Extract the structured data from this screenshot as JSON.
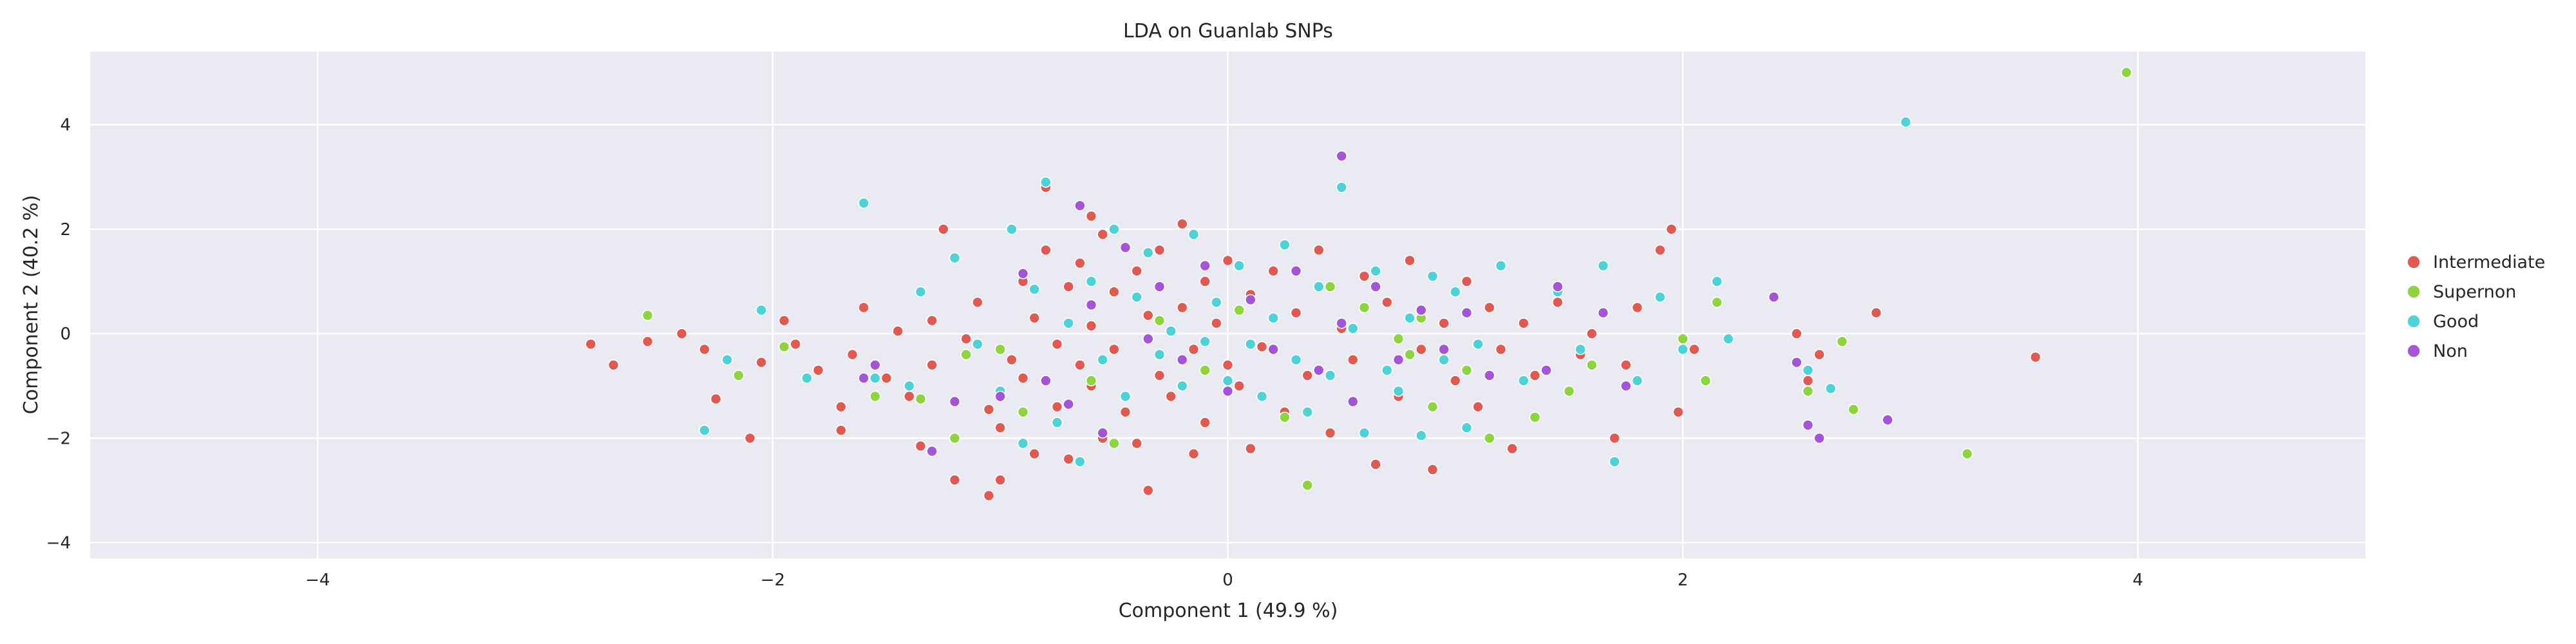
{
  "chart_data": {
    "type": "scatter",
    "title": "LDA on Guanlab SNPs",
    "xlabel": "Component 1 (49.9 %)",
    "ylabel": "Component 2 (40.2 %)",
    "xlim": [
      -5,
      5
    ],
    "ylim": [
      -4.3,
      5.4
    ],
    "xticks": [
      -4,
      -2,
      0,
      2,
      4
    ],
    "xtick_labels": [
      "−4",
      "−2",
      "0",
      "2",
      "4"
    ],
    "yticks": [
      -4,
      -2,
      0,
      2,
      4
    ],
    "ytick_labels": [
      "−4",
      "−2",
      "0",
      "2",
      "4"
    ],
    "grid": true,
    "legend_position": "right",
    "background_color": "#eaeaf2",
    "grid_color": "#ffffff",
    "series": [
      {
        "name": "Intermediate",
        "color": "#e05a51",
        "points": [
          [
            -2.8,
            -0.2
          ],
          [
            -2.7,
            -0.6
          ],
          [
            -2.55,
            -0.15
          ],
          [
            -2.4,
            0.0
          ],
          [
            -2.3,
            -0.3
          ],
          [
            -2.25,
            -1.25
          ],
          [
            -2.1,
            -2.0
          ],
          [
            -2.05,
            -0.55
          ],
          [
            -1.95,
            0.25
          ],
          [
            -1.9,
            -0.2
          ],
          [
            -1.8,
            -0.7
          ],
          [
            -1.7,
            -1.4
          ],
          [
            -1.7,
            -1.85
          ],
          [
            -1.65,
            -0.4
          ],
          [
            -1.6,
            0.5
          ],
          [
            -1.5,
            -0.85
          ],
          [
            -1.45,
            0.05
          ],
          [
            -1.4,
            -1.2
          ],
          [
            -1.35,
            -2.15
          ],
          [
            -1.3,
            0.25
          ],
          [
            -1.3,
            -0.6
          ],
          [
            -1.25,
            2.0
          ],
          [
            -1.2,
            -2.8
          ],
          [
            -1.15,
            -0.1
          ],
          [
            -1.1,
            0.6
          ],
          [
            -1.05,
            -1.45
          ],
          [
            -1.05,
            -3.1
          ],
          [
            -1.0,
            -2.8
          ],
          [
            -1.0,
            -1.8
          ],
          [
            -0.95,
            -0.5
          ],
          [
            -0.9,
            1.0
          ],
          [
            -0.9,
            -0.85
          ],
          [
            -0.85,
            0.3
          ],
          [
            -0.85,
            -2.3
          ],
          [
            -0.8,
            2.8
          ],
          [
            -0.8,
            1.6
          ],
          [
            -0.75,
            -0.2
          ],
          [
            -0.75,
            -1.4
          ],
          [
            -0.7,
            0.9
          ],
          [
            -0.7,
            -2.4
          ],
          [
            -0.65,
            -0.6
          ],
          [
            -0.65,
            1.35
          ],
          [
            -0.6,
            2.25
          ],
          [
            -0.6,
            0.15
          ],
          [
            -0.6,
            -1.0
          ],
          [
            -0.55,
            -2.0
          ],
          [
            -0.55,
            1.9
          ],
          [
            -0.5,
            -0.3
          ],
          [
            -0.5,
            0.8
          ],
          [
            -0.45,
            -1.5
          ],
          [
            -0.4,
            1.2
          ],
          [
            -0.4,
            -2.1
          ],
          [
            -0.35,
            -3.0
          ],
          [
            -0.35,
            0.35
          ],
          [
            -0.3,
            -0.8
          ],
          [
            -0.3,
            1.6
          ],
          [
            -0.25,
            -1.2
          ],
          [
            -0.2,
            2.1
          ],
          [
            -0.2,
            0.5
          ],
          [
            -0.15,
            -2.3
          ],
          [
            -0.15,
            -0.3
          ],
          [
            -0.1,
            1.0
          ],
          [
            -0.1,
            -1.7
          ],
          [
            -0.05,
            0.2
          ],
          [
            0.0,
            -0.6
          ],
          [
            0.0,
            1.4
          ],
          [
            0.05,
            -1.0
          ],
          [
            0.1,
            -2.2
          ],
          [
            0.1,
            0.75
          ],
          [
            0.15,
            -0.25
          ],
          [
            0.2,
            1.2
          ],
          [
            0.25,
            -1.5
          ],
          [
            0.3,
            0.4
          ],
          [
            0.35,
            -0.8
          ],
          [
            0.4,
            1.6
          ],
          [
            0.45,
            -1.9
          ],
          [
            0.5,
            0.1
          ],
          [
            0.55,
            -0.5
          ],
          [
            0.6,
            1.1
          ],
          [
            0.65,
            -2.5
          ],
          [
            0.7,
            0.6
          ],
          [
            0.75,
            -1.2
          ],
          [
            0.8,
            1.4
          ],
          [
            0.85,
            -0.3
          ],
          [
            0.9,
            -2.6
          ],
          [
            0.95,
            0.2
          ],
          [
            1.0,
            -0.9
          ],
          [
            1.05,
            1.0
          ],
          [
            1.1,
            -1.4
          ],
          [
            1.15,
            0.5
          ],
          [
            1.2,
            -0.3
          ],
          [
            1.25,
            -2.2
          ],
          [
            1.3,
            0.2
          ],
          [
            1.35,
            -0.8
          ],
          [
            1.45,
            0.6
          ],
          [
            1.55,
            -0.4
          ],
          [
            1.6,
            0.0
          ],
          [
            1.7,
            -2.0
          ],
          [
            1.75,
            -0.6
          ],
          [
            1.8,
            0.5
          ],
          [
            1.9,
            1.6
          ],
          [
            1.95,
            2.0
          ],
          [
            1.98,
            -1.5
          ],
          [
            2.05,
            -0.3
          ],
          [
            2.5,
            0.0
          ],
          [
            2.55,
            -0.9
          ],
          [
            2.6,
            -0.4
          ],
          [
            2.85,
            0.4
          ],
          [
            3.55,
            -0.45
          ]
        ]
      },
      {
        "name": "Supernon",
        "color": "#8dd43f",
        "points": [
          [
            -2.55,
            0.35
          ],
          [
            -2.15,
            -0.8
          ],
          [
            -1.95,
            -0.25
          ],
          [
            -1.55,
            -1.2
          ],
          [
            -1.35,
            -1.25
          ],
          [
            -1.2,
            -2.0
          ],
          [
            -1.15,
            -0.4
          ],
          [
            -1.0,
            -0.3
          ],
          [
            -0.9,
            -1.5
          ],
          [
            -0.6,
            -0.9
          ],
          [
            -0.5,
            -2.1
          ],
          [
            -0.3,
            0.25
          ],
          [
            -0.1,
            -0.7
          ],
          [
            0.05,
            0.45
          ],
          [
            0.25,
            -1.6
          ],
          [
            0.35,
            -2.9
          ],
          [
            0.45,
            0.9
          ],
          [
            0.6,
            0.5
          ],
          [
            0.75,
            -0.1
          ],
          [
            0.8,
            -0.4
          ],
          [
            0.85,
            0.3
          ],
          [
            0.9,
            -1.4
          ],
          [
            1.05,
            -0.7
          ],
          [
            1.15,
            -2.0
          ],
          [
            1.35,
            -1.6
          ],
          [
            1.5,
            -1.1
          ],
          [
            1.6,
            -0.6
          ],
          [
            2.0,
            -0.1
          ],
          [
            2.1,
            -0.9
          ],
          [
            2.15,
            0.6
          ],
          [
            2.55,
            -1.1
          ],
          [
            2.7,
            -0.15
          ],
          [
            2.75,
            -1.45
          ],
          [
            3.25,
            -2.3
          ],
          [
            3.95,
            5.0
          ]
        ]
      },
      {
        "name": "Good",
        "color": "#4dd2d8",
        "points": [
          [
            -2.3,
            -1.85
          ],
          [
            -2.2,
            -0.5
          ],
          [
            -2.05,
            0.45
          ],
          [
            -1.85,
            -0.85
          ],
          [
            -1.6,
            2.5
          ],
          [
            -1.55,
            -0.85
          ],
          [
            -1.4,
            -1.0
          ],
          [
            -1.35,
            0.8
          ],
          [
            -1.2,
            1.45
          ],
          [
            -1.1,
            -0.2
          ],
          [
            -1.0,
            -1.1
          ],
          [
            -0.95,
            2.0
          ],
          [
            -0.9,
            -2.1
          ],
          [
            -0.85,
            0.85
          ],
          [
            -0.8,
            2.9
          ],
          [
            -0.75,
            -1.7
          ],
          [
            -0.7,
            0.2
          ],
          [
            -0.65,
            -2.45
          ],
          [
            -0.6,
            1.0
          ],
          [
            -0.55,
            -0.5
          ],
          [
            -0.5,
            2.0
          ],
          [
            -0.45,
            -1.2
          ],
          [
            -0.4,
            0.7
          ],
          [
            -0.35,
            1.55
          ],
          [
            -0.3,
            -0.4
          ],
          [
            -0.25,
            0.05
          ],
          [
            -0.2,
            -1.0
          ],
          [
            -0.15,
            1.9
          ],
          [
            -0.1,
            -0.15
          ],
          [
            -0.05,
            0.6
          ],
          [
            0.0,
            -0.9
          ],
          [
            0.05,
            1.3
          ],
          [
            0.1,
            -0.2
          ],
          [
            0.15,
            -1.2
          ],
          [
            0.2,
            0.3
          ],
          [
            0.25,
            1.7
          ],
          [
            0.3,
            -0.5
          ],
          [
            0.35,
            -1.5
          ],
          [
            0.4,
            0.9
          ],
          [
            0.45,
            -0.8
          ],
          [
            0.5,
            2.8
          ],
          [
            0.55,
            0.1
          ],
          [
            0.6,
            -1.9
          ],
          [
            0.65,
            1.2
          ],
          [
            0.7,
            -0.7
          ],
          [
            0.75,
            -1.1
          ],
          [
            0.8,
            0.3
          ],
          [
            0.85,
            -1.95
          ],
          [
            0.9,
            1.1
          ],
          [
            0.95,
            -0.5
          ],
          [
            1.0,
            0.8
          ],
          [
            1.05,
            -1.8
          ],
          [
            1.1,
            -0.2
          ],
          [
            1.2,
            1.3
          ],
          [
            1.3,
            -0.9
          ],
          [
            1.45,
            0.8
          ],
          [
            1.55,
            -0.3
          ],
          [
            1.65,
            1.3
          ],
          [
            1.7,
            -2.45
          ],
          [
            1.8,
            -0.9
          ],
          [
            1.9,
            0.7
          ],
          [
            2.0,
            -0.3
          ],
          [
            2.15,
            1.0
          ],
          [
            2.2,
            -0.1
          ],
          [
            2.55,
            -0.7
          ],
          [
            2.65,
            -1.05
          ],
          [
            2.98,
            4.05
          ]
        ]
      },
      {
        "name": "Non",
        "color": "#a354d8",
        "points": [
          [
            -1.6,
            -0.85
          ],
          [
            -1.55,
            -0.6
          ],
          [
            -1.3,
            -2.25
          ],
          [
            -1.2,
            -1.3
          ],
          [
            -1.0,
            -1.2
          ],
          [
            -0.9,
            1.15
          ],
          [
            -0.8,
            -0.9
          ],
          [
            -0.7,
            -1.35
          ],
          [
            -0.65,
            2.45
          ],
          [
            -0.6,
            0.55
          ],
          [
            -0.55,
            -1.9
          ],
          [
            -0.45,
            1.65
          ],
          [
            -0.35,
            -0.1
          ],
          [
            -0.3,
            0.9
          ],
          [
            -0.2,
            -0.5
          ],
          [
            -0.1,
            1.3
          ],
          [
            0.0,
            -1.1
          ],
          [
            0.1,
            0.65
          ],
          [
            0.2,
            -0.3
          ],
          [
            0.3,
            1.2
          ],
          [
            0.4,
            -0.7
          ],
          [
            0.5,
            0.2
          ],
          [
            0.55,
            -1.3
          ],
          [
            0.5,
            3.4
          ],
          [
            0.65,
            0.9
          ],
          [
            0.75,
            -0.5
          ],
          [
            0.85,
            0.45
          ],
          [
            0.95,
            -0.3
          ],
          [
            1.05,
            0.4
          ],
          [
            1.15,
            -0.8
          ],
          [
            1.4,
            -0.7
          ],
          [
            1.45,
            0.9
          ],
          [
            1.65,
            0.4
          ],
          [
            1.75,
            -1.0
          ],
          [
            2.4,
            0.7
          ],
          [
            2.5,
            -0.55
          ],
          [
            2.55,
            -1.75
          ],
          [
            2.6,
            -2.0
          ],
          [
            2.9,
            -1.65
          ]
        ]
      }
    ]
  }
}
